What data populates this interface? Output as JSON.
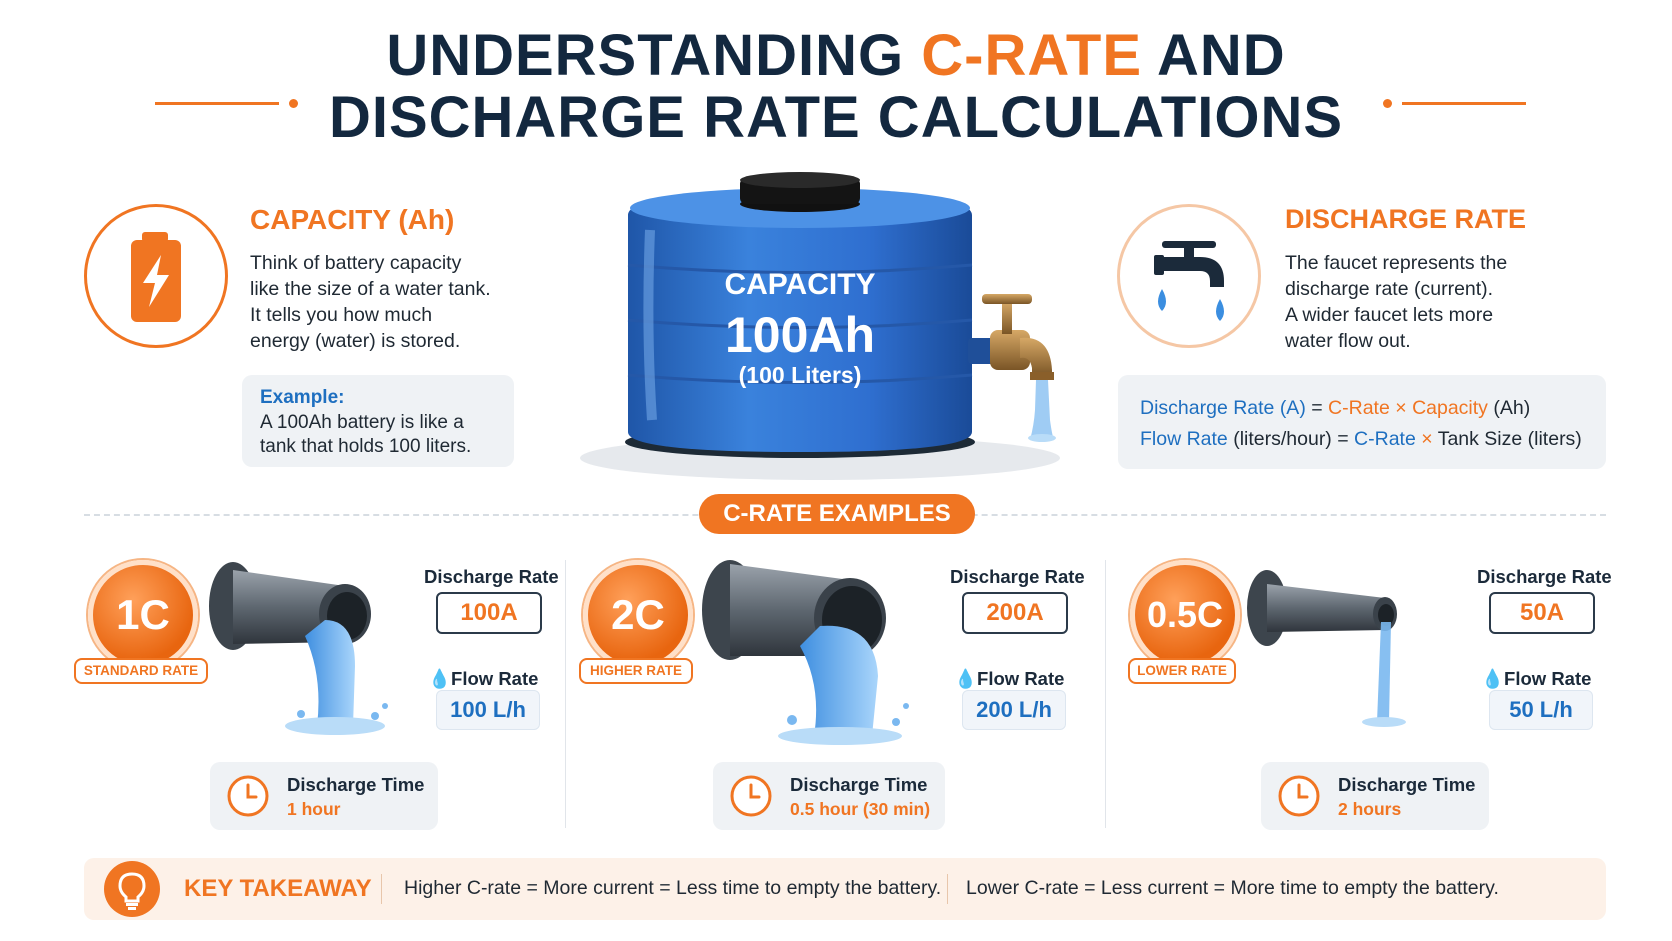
{
  "title": {
    "line1_prefix": "UNDERSTANDING ",
    "line1_accent": "C-RATE",
    "line1_suffix": " AND",
    "line2": "DISCHARGE RATE CALCULATIONS"
  },
  "capacity": {
    "title": "CAPACITY (Ah)",
    "text": "Think of battery capacity\nlike the size of a water tank.\nIt tells you how much\nenergy (water) is stored.",
    "example_label": "Example:",
    "example_text": "A 100Ah battery is like a\ntank that holds 100 liters."
  },
  "tank": {
    "label": "CAPACITY",
    "value": "100Ah",
    "liters": "(100 Liters)"
  },
  "discharge": {
    "title": "DISCHARGE RATE",
    "text": "The faucet represents the\ndischarge rate (current).\nA wider faucet lets more\nwater flow out.",
    "formula1": {
      "a": "Discharge Rate (A)",
      "eq": " = ",
      "b": "C-Rate",
      "x": " × ",
      "c": "Capacity",
      "d": " (Ah)"
    },
    "formula2": {
      "a": "Flow Rate",
      "a2": " (liters/hour) = ",
      "b": "C-Rate",
      "x": " × ",
      "d": "Tank Size (liters)"
    }
  },
  "examples_heading": "C-RATE EXAMPLES",
  "examples": [
    {
      "badge": "1C",
      "tag": "STANDARD RATE",
      "rate_label": "Discharge Rate",
      "rate": "100A",
      "flow_label": "Flow Rate",
      "flow": "100 L/h",
      "time_label": "Discharge Time",
      "time": "1 hour"
    },
    {
      "badge": "2C",
      "tag": "HIGHER RATE",
      "rate_label": "Discharge Rate",
      "rate": "200A",
      "flow_label": "Flow Rate",
      "flow": "200 L/h",
      "time_label": "Discharge Time",
      "time": "0.5 hour (30 min)"
    },
    {
      "badge": "0.5C",
      "tag": "LOWER RATE",
      "rate_label": "Discharge Rate",
      "rate": "50A",
      "flow_label": "Flow Rate",
      "flow": "50 L/h",
      "time_label": "Discharge Time",
      "time": "2 hours"
    }
  ],
  "takeaway": {
    "title": "KEY TAKEAWAY",
    "left": "Higher C-rate = More current = Less time to empty the battery.",
    "right": "Lower C-rate = Less current = More time to empty the battery."
  },
  "icons": [
    "battery-icon",
    "faucet-icon",
    "pipe-icon",
    "clock-icon",
    "lightbulb-icon",
    "droplet-icon"
  ],
  "colors": {
    "accent": "#f07522",
    "navy": "#13283f",
    "blue": "#1e6fc0",
    "tank": "#2f6fd0"
  }
}
